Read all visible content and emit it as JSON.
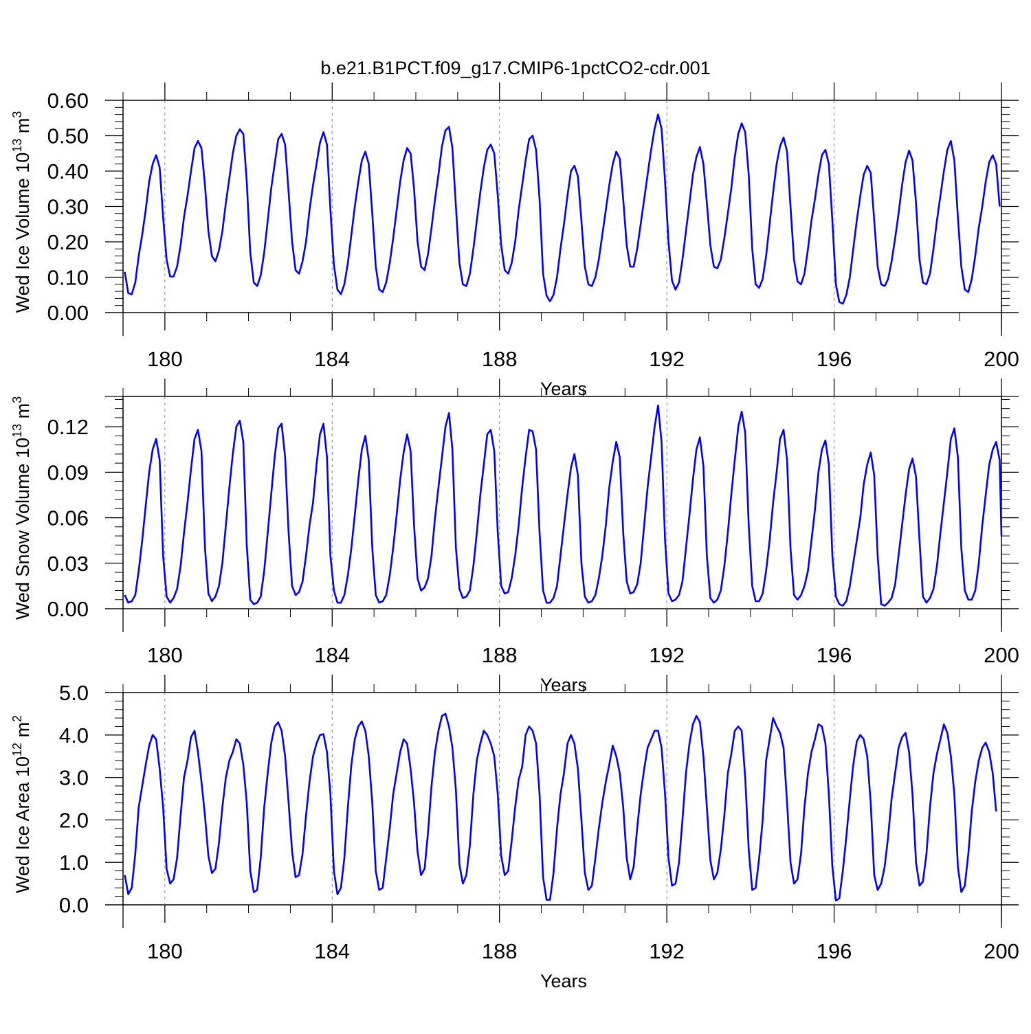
{
  "figure": {
    "title": "b.e21.B1PCT.f09_g17.CMIP6-1pctCO2-cdr.001"
  },
  "colors": {
    "line": "#0000ff",
    "axis": "#000000",
    "gridline": "#808080"
  },
  "chart_data": [
    {
      "type": "line",
      "xlabel": "Years",
      "ylabel": "Wed Ice Volume 10",
      "ylabel_exp": "13",
      "ylabel_unit": " m",
      "ylabel_unit_exp": "3",
      "xlim": [
        179,
        200
      ],
      "ylim": [
        0.0,
        0.6
      ],
      "xticks": [
        180,
        184,
        188,
        192,
        196,
        200
      ],
      "xtick_labels": [
        "180",
        "184",
        "188",
        "192",
        "196",
        "200"
      ],
      "yticks": [
        0.0,
        0.1,
        0.2,
        0.3,
        0.4,
        0.5,
        0.6
      ],
      "ytick_labels": [
        "0.00",
        "0.10",
        "0.20",
        "0.30",
        "0.40",
        "0.50",
        "0.60"
      ],
      "grid": "vertical dashed at major x ticks",
      "series": [
        {
          "x_start": 179.0417,
          "x_step": 0.08333,
          "values": [
            0.115,
            0.055,
            0.052,
            0.085,
            0.16,
            0.22,
            0.29,
            0.37,
            0.42,
            0.445,
            0.41,
            0.27,
            0.15,
            0.102,
            0.102,
            0.13,
            0.19,
            0.27,
            0.33,
            0.4,
            0.465,
            0.485,
            0.465,
            0.36,
            0.23,
            0.16,
            0.145,
            0.175,
            0.23,
            0.31,
            0.38,
            0.45,
            0.5,
            0.518,
            0.505,
            0.37,
            0.17,
            0.085,
            0.075,
            0.105,
            0.17,
            0.26,
            0.35,
            0.42,
            0.49,
            0.505,
            0.475,
            0.34,
            0.2,
            0.12,
            0.11,
            0.145,
            0.2,
            0.29,
            0.36,
            0.42,
            0.48,
            0.51,
            0.475,
            0.29,
            0.135,
            0.065,
            0.052,
            0.08,
            0.14,
            0.22,
            0.3,
            0.37,
            0.43,
            0.455,
            0.42,
            0.28,
            0.13,
            0.065,
            0.058,
            0.085,
            0.14,
            0.21,
            0.29,
            0.37,
            0.43,
            0.465,
            0.45,
            0.35,
            0.2,
            0.13,
            0.12,
            0.165,
            0.24,
            0.32,
            0.39,
            0.47,
            0.515,
            0.525,
            0.465,
            0.3,
            0.14,
            0.08,
            0.075,
            0.11,
            0.18,
            0.26,
            0.34,
            0.41,
            0.46,
            0.475,
            0.45,
            0.33,
            0.19,
            0.12,
            0.11,
            0.14,
            0.2,
            0.29,
            0.36,
            0.43,
            0.49,
            0.5,
            0.46,
            0.32,
            0.11,
            0.048,
            0.032,
            0.05,
            0.1,
            0.18,
            0.25,
            0.33,
            0.4,
            0.415,
            0.385,
            0.26,
            0.13,
            0.08,
            0.075,
            0.1,
            0.15,
            0.22,
            0.29,
            0.36,
            0.42,
            0.455,
            0.435,
            0.32,
            0.19,
            0.13,
            0.13,
            0.18,
            0.25,
            0.32,
            0.39,
            0.46,
            0.52,
            0.56,
            0.52,
            0.37,
            0.2,
            0.09,
            0.065,
            0.085,
            0.15,
            0.23,
            0.31,
            0.39,
            0.44,
            0.468,
            0.42,
            0.31,
            0.19,
            0.13,
            0.125,
            0.15,
            0.21,
            0.28,
            0.35,
            0.44,
            0.505,
            0.535,
            0.51,
            0.39,
            0.18,
            0.08,
            0.07,
            0.095,
            0.16,
            0.25,
            0.34,
            0.42,
            0.47,
            0.495,
            0.455,
            0.3,
            0.15,
            0.088,
            0.08,
            0.11,
            0.18,
            0.26,
            0.32,
            0.39,
            0.445,
            0.46,
            0.42,
            0.26,
            0.08,
            0.03,
            0.025,
            0.05,
            0.1,
            0.18,
            0.26,
            0.33,
            0.39,
            0.415,
            0.395,
            0.26,
            0.13,
            0.08,
            0.075,
            0.095,
            0.145,
            0.21,
            0.28,
            0.36,
            0.425,
            0.458,
            0.43,
            0.31,
            0.15,
            0.085,
            0.08,
            0.11,
            0.18,
            0.26,
            0.33,
            0.4,
            0.46,
            0.485,
            0.43,
            0.27,
            0.13,
            0.065,
            0.058,
            0.095,
            0.16,
            0.24,
            0.3,
            0.37,
            0.425,
            0.445,
            0.42,
            0.3
          ]
        }
      ]
    },
    {
      "type": "line",
      "xlabel": "Years",
      "ylabel": "Wed Snow Volume 10",
      "ylabel_exp": "13",
      "ylabel_unit": " m",
      "ylabel_unit_exp": "3",
      "xlim": [
        179,
        200
      ],
      "ylim": [
        0.0,
        0.14
      ],
      "xticks": [
        180,
        184,
        188,
        192,
        196,
        200
      ],
      "xtick_labels": [
        "180",
        "184",
        "188",
        "192",
        "196",
        "200"
      ],
      "yticks": [
        0.0,
        0.03,
        0.06,
        0.09,
        0.12
      ],
      "ytick_labels": [
        "0.00",
        "0.03",
        "0.06",
        "0.09",
        "0.12"
      ],
      "grid": "vertical dashed at major x ticks",
      "series": [
        {
          "x_start": 179.0417,
          "x_step": 0.08333,
          "values": [
            0.009,
            0.004,
            0.005,
            0.009,
            0.025,
            0.045,
            0.068,
            0.09,
            0.105,
            0.112,
            0.098,
            0.035,
            0.008,
            0.004,
            0.007,
            0.013,
            0.028,
            0.05,
            0.07,
            0.092,
            0.112,
            0.118,
            0.104,
            0.04,
            0.01,
            0.005,
            0.008,
            0.015,
            0.03,
            0.055,
            0.08,
            0.102,
            0.12,
            0.124,
            0.11,
            0.042,
            0.006,
            0.003,
            0.004,
            0.008,
            0.025,
            0.05,
            0.075,
            0.1,
            0.119,
            0.122,
            0.1,
            0.05,
            0.015,
            0.009,
            0.011,
            0.018,
            0.035,
            0.055,
            0.07,
            0.095,
            0.115,
            0.122,
            0.1,
            0.035,
            0.012,
            0.004,
            0.004,
            0.009,
            0.022,
            0.04,
            0.062,
            0.085,
            0.105,
            0.114,
            0.098,
            0.04,
            0.009,
            0.004,
            0.005,
            0.009,
            0.022,
            0.04,
            0.062,
            0.085,
            0.103,
            0.115,
            0.104,
            0.055,
            0.02,
            0.012,
            0.014,
            0.02,
            0.035,
            0.06,
            0.08,
            0.1,
            0.12,
            0.129,
            0.105,
            0.04,
            0.013,
            0.007,
            0.008,
            0.012,
            0.028,
            0.05,
            0.075,
            0.095,
            0.115,
            0.118,
            0.104,
            0.05,
            0.015,
            0.01,
            0.011,
            0.02,
            0.035,
            0.055,
            0.08,
            0.1,
            0.118,
            0.117,
            0.105,
            0.05,
            0.012,
            0.004,
            0.004,
            0.007,
            0.015,
            0.035,
            0.055,
            0.075,
            0.093,
            0.102,
            0.088,
            0.03,
            0.008,
            0.004,
            0.005,
            0.009,
            0.02,
            0.035,
            0.055,
            0.08,
            0.097,
            0.11,
            0.1,
            0.05,
            0.018,
            0.01,
            0.011,
            0.016,
            0.03,
            0.055,
            0.08,
            0.1,
            0.12,
            0.134,
            0.11,
            0.045,
            0.01,
            0.005,
            0.006,
            0.009,
            0.018,
            0.04,
            0.062,
            0.085,
            0.105,
            0.113,
            0.094,
            0.035,
            0.007,
            0.004,
            0.006,
            0.012,
            0.028,
            0.05,
            0.075,
            0.098,
            0.12,
            0.13,
            0.116,
            0.055,
            0.015,
            0.005,
            0.005,
            0.01,
            0.025,
            0.045,
            0.07,
            0.09,
            0.112,
            0.118,
            0.098,
            0.04,
            0.009,
            0.006,
            0.009,
            0.015,
            0.025,
            0.045,
            0.065,
            0.09,
            0.105,
            0.111,
            0.095,
            0.035,
            0.008,
            0.003,
            0.002,
            0.005,
            0.015,
            0.03,
            0.045,
            0.06,
            0.082,
            0.095,
            0.103,
            0.088,
            0.035,
            0.003,
            0.002,
            0.004,
            0.007,
            0.016,
            0.035,
            0.055,
            0.075,
            0.092,
            0.099,
            0.087,
            0.045,
            0.008,
            0.004,
            0.007,
            0.013,
            0.028,
            0.05,
            0.07,
            0.09,
            0.112,
            0.119,
            0.1,
            0.04,
            0.012,
            0.006,
            0.006,
            0.012,
            0.03,
            0.055,
            0.075,
            0.095,
            0.105,
            0.11,
            0.098,
            0.048
          ]
        }
      ]
    },
    {
      "type": "line",
      "xlabel": "Years",
      "ylabel": "Wed Ice Area 10",
      "ylabel_exp": "12",
      "ylabel_unit": " m",
      "ylabel_unit_exp": "2",
      "xlim": [
        179,
        200
      ],
      "ylim": [
        0.0,
        5.0
      ],
      "xticks": [
        180,
        184,
        188,
        192,
        196,
        200
      ],
      "xtick_labels": [
        "180",
        "184",
        "188",
        "192",
        "196",
        "200"
      ],
      "yticks": [
        0.0,
        1.0,
        2.0,
        3.0,
        4.0,
        5.0
      ],
      "ytick_labels": [
        "0.0",
        "1.0",
        "2.0",
        "3.0",
        "4.0",
        "5.0"
      ],
      "grid": "vertical dashed at major x ticks",
      "series": [
        {
          "x_start": 179.0417,
          "x_step": 0.08333,
          "values": [
            0.7,
            0.25,
            0.4,
            1.2,
            2.3,
            2.8,
            3.3,
            3.75,
            4.0,
            3.9,
            3.2,
            2.3,
            0.85,
            0.5,
            0.6,
            1.1,
            2.1,
            3.0,
            3.4,
            3.95,
            4.1,
            3.6,
            2.9,
            2.1,
            1.15,
            0.75,
            0.85,
            1.45,
            2.3,
            3.0,
            3.4,
            3.6,
            3.9,
            3.8,
            3.3,
            2.4,
            0.8,
            0.3,
            0.35,
            1.1,
            2.3,
            3.1,
            3.8,
            4.2,
            4.3,
            4.1,
            3.5,
            2.4,
            1.25,
            0.65,
            0.7,
            1.2,
            2.1,
            2.9,
            3.5,
            3.8,
            4.0,
            4.02,
            3.6,
            2.6,
            0.8,
            0.25,
            0.4,
            1.1,
            2.3,
            3.3,
            3.9,
            4.2,
            4.32,
            4.1,
            3.5,
            2.4,
            0.8,
            0.35,
            0.4,
            1.1,
            1.8,
            2.6,
            3.1,
            3.6,
            3.9,
            3.8,
            3.2,
            2.4,
            1.25,
            0.7,
            0.85,
            1.7,
            2.8,
            3.6,
            4.1,
            4.45,
            4.5,
            4.2,
            3.7,
            2.7,
            0.95,
            0.5,
            0.7,
            1.4,
            2.6,
            3.4,
            3.8,
            4.1,
            4.0,
            3.8,
            3.5,
            2.6,
            1.15,
            0.7,
            0.8,
            1.5,
            2.3,
            2.95,
            3.25,
            4.0,
            4.2,
            4.1,
            3.8,
            2.6,
            0.65,
            0.12,
            0.12,
            0.75,
            1.8,
            2.6,
            3.1,
            3.8,
            4.0,
            3.8,
            3.2,
            2.0,
            0.75,
            0.35,
            0.45,
            1.1,
            1.8,
            2.4,
            2.9,
            3.3,
            3.75,
            3.5,
            3.1,
            2.3,
            1.1,
            0.6,
            0.9,
            1.8,
            2.6,
            3.2,
            3.7,
            3.9,
            4.1,
            4.1,
            3.7,
            2.6,
            1.1,
            0.45,
            0.5,
            1.0,
            2.0,
            3.1,
            3.8,
            4.25,
            4.45,
            4.3,
            3.5,
            2.3,
            1.05,
            0.6,
            0.75,
            1.3,
            2.1,
            3.1,
            3.55,
            4.1,
            4.2,
            4.1,
            3.0,
            1.3,
            0.35,
            0.4,
            1.1,
            2.0,
            3.4,
            3.9,
            4.4,
            4.2,
            4.05,
            3.7,
            2.4,
            1.0,
            0.5,
            0.6,
            1.2,
            2.3,
            3.1,
            3.6,
            3.9,
            4.25,
            4.2,
            3.8,
            2.6,
            0.9,
            0.1,
            0.15,
            0.8,
            1.6,
            2.5,
            3.3,
            3.85,
            4.0,
            3.9,
            3.5,
            2.4,
            0.7,
            0.35,
            0.5,
            0.9,
            1.6,
            2.5,
            3.1,
            3.7,
            3.95,
            4.05,
            3.6,
            2.6,
            1.0,
            0.45,
            0.55,
            1.2,
            2.3,
            3.1,
            3.55,
            3.9,
            4.25,
            4.05,
            3.5,
            2.6,
            0.9,
            0.3,
            0.45,
            1.2,
            2.2,
            2.9,
            3.4,
            3.7,
            3.82,
            3.6,
            3.1,
            2.2
          ]
        }
      ]
    }
  ]
}
